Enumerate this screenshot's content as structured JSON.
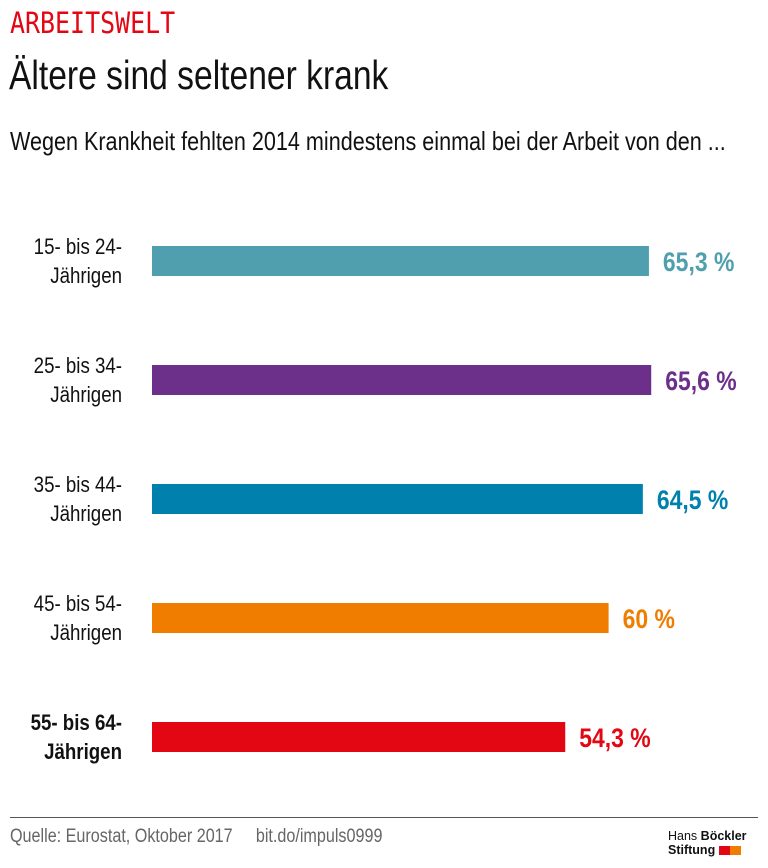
{
  "header": {
    "kicker": "ARBEITSWELT",
    "title": "Ältere sind seltener krank",
    "subtitle": "Wegen Krankheit fehlten 2014 mindestens einmal bei der Arbeit von den ..."
  },
  "chart_data": {
    "type": "bar",
    "orientation": "horizontal",
    "categories": [
      [
        "15- bis 24-",
        "Jährigen"
      ],
      [
        "25- bis 34-",
        "Jährigen"
      ],
      [
        "35- bis 44-",
        "Jährigen"
      ],
      [
        "45- bis 54-",
        "Jährigen"
      ],
      [
        "55- bis 64-",
        "Jährigen"
      ]
    ],
    "values": [
      65.3,
      65.6,
      64.5,
      60,
      54.3
    ],
    "value_labels": [
      "65,3 %",
      "65,6 %",
      "64,5 %",
      "60 %",
      "54,3 %"
    ],
    "colors": [
      "#4f9fae",
      "#6c2f8a",
      "#0080ad",
      "#f07d00",
      "#e30613"
    ],
    "highlighted_category": 4,
    "unit": "%",
    "xlim": [
      0,
      100
    ],
    "grid": false,
    "legend": "none"
  },
  "footer": {
    "source": "Quelle: Eurostat, Oktober 2017",
    "link": "bit.do/impuls0999",
    "logo_text": [
      "Hans",
      "Böckler",
      "Stiftung"
    ],
    "logo_colors": [
      "#e30613",
      "#f07d00"
    ]
  }
}
